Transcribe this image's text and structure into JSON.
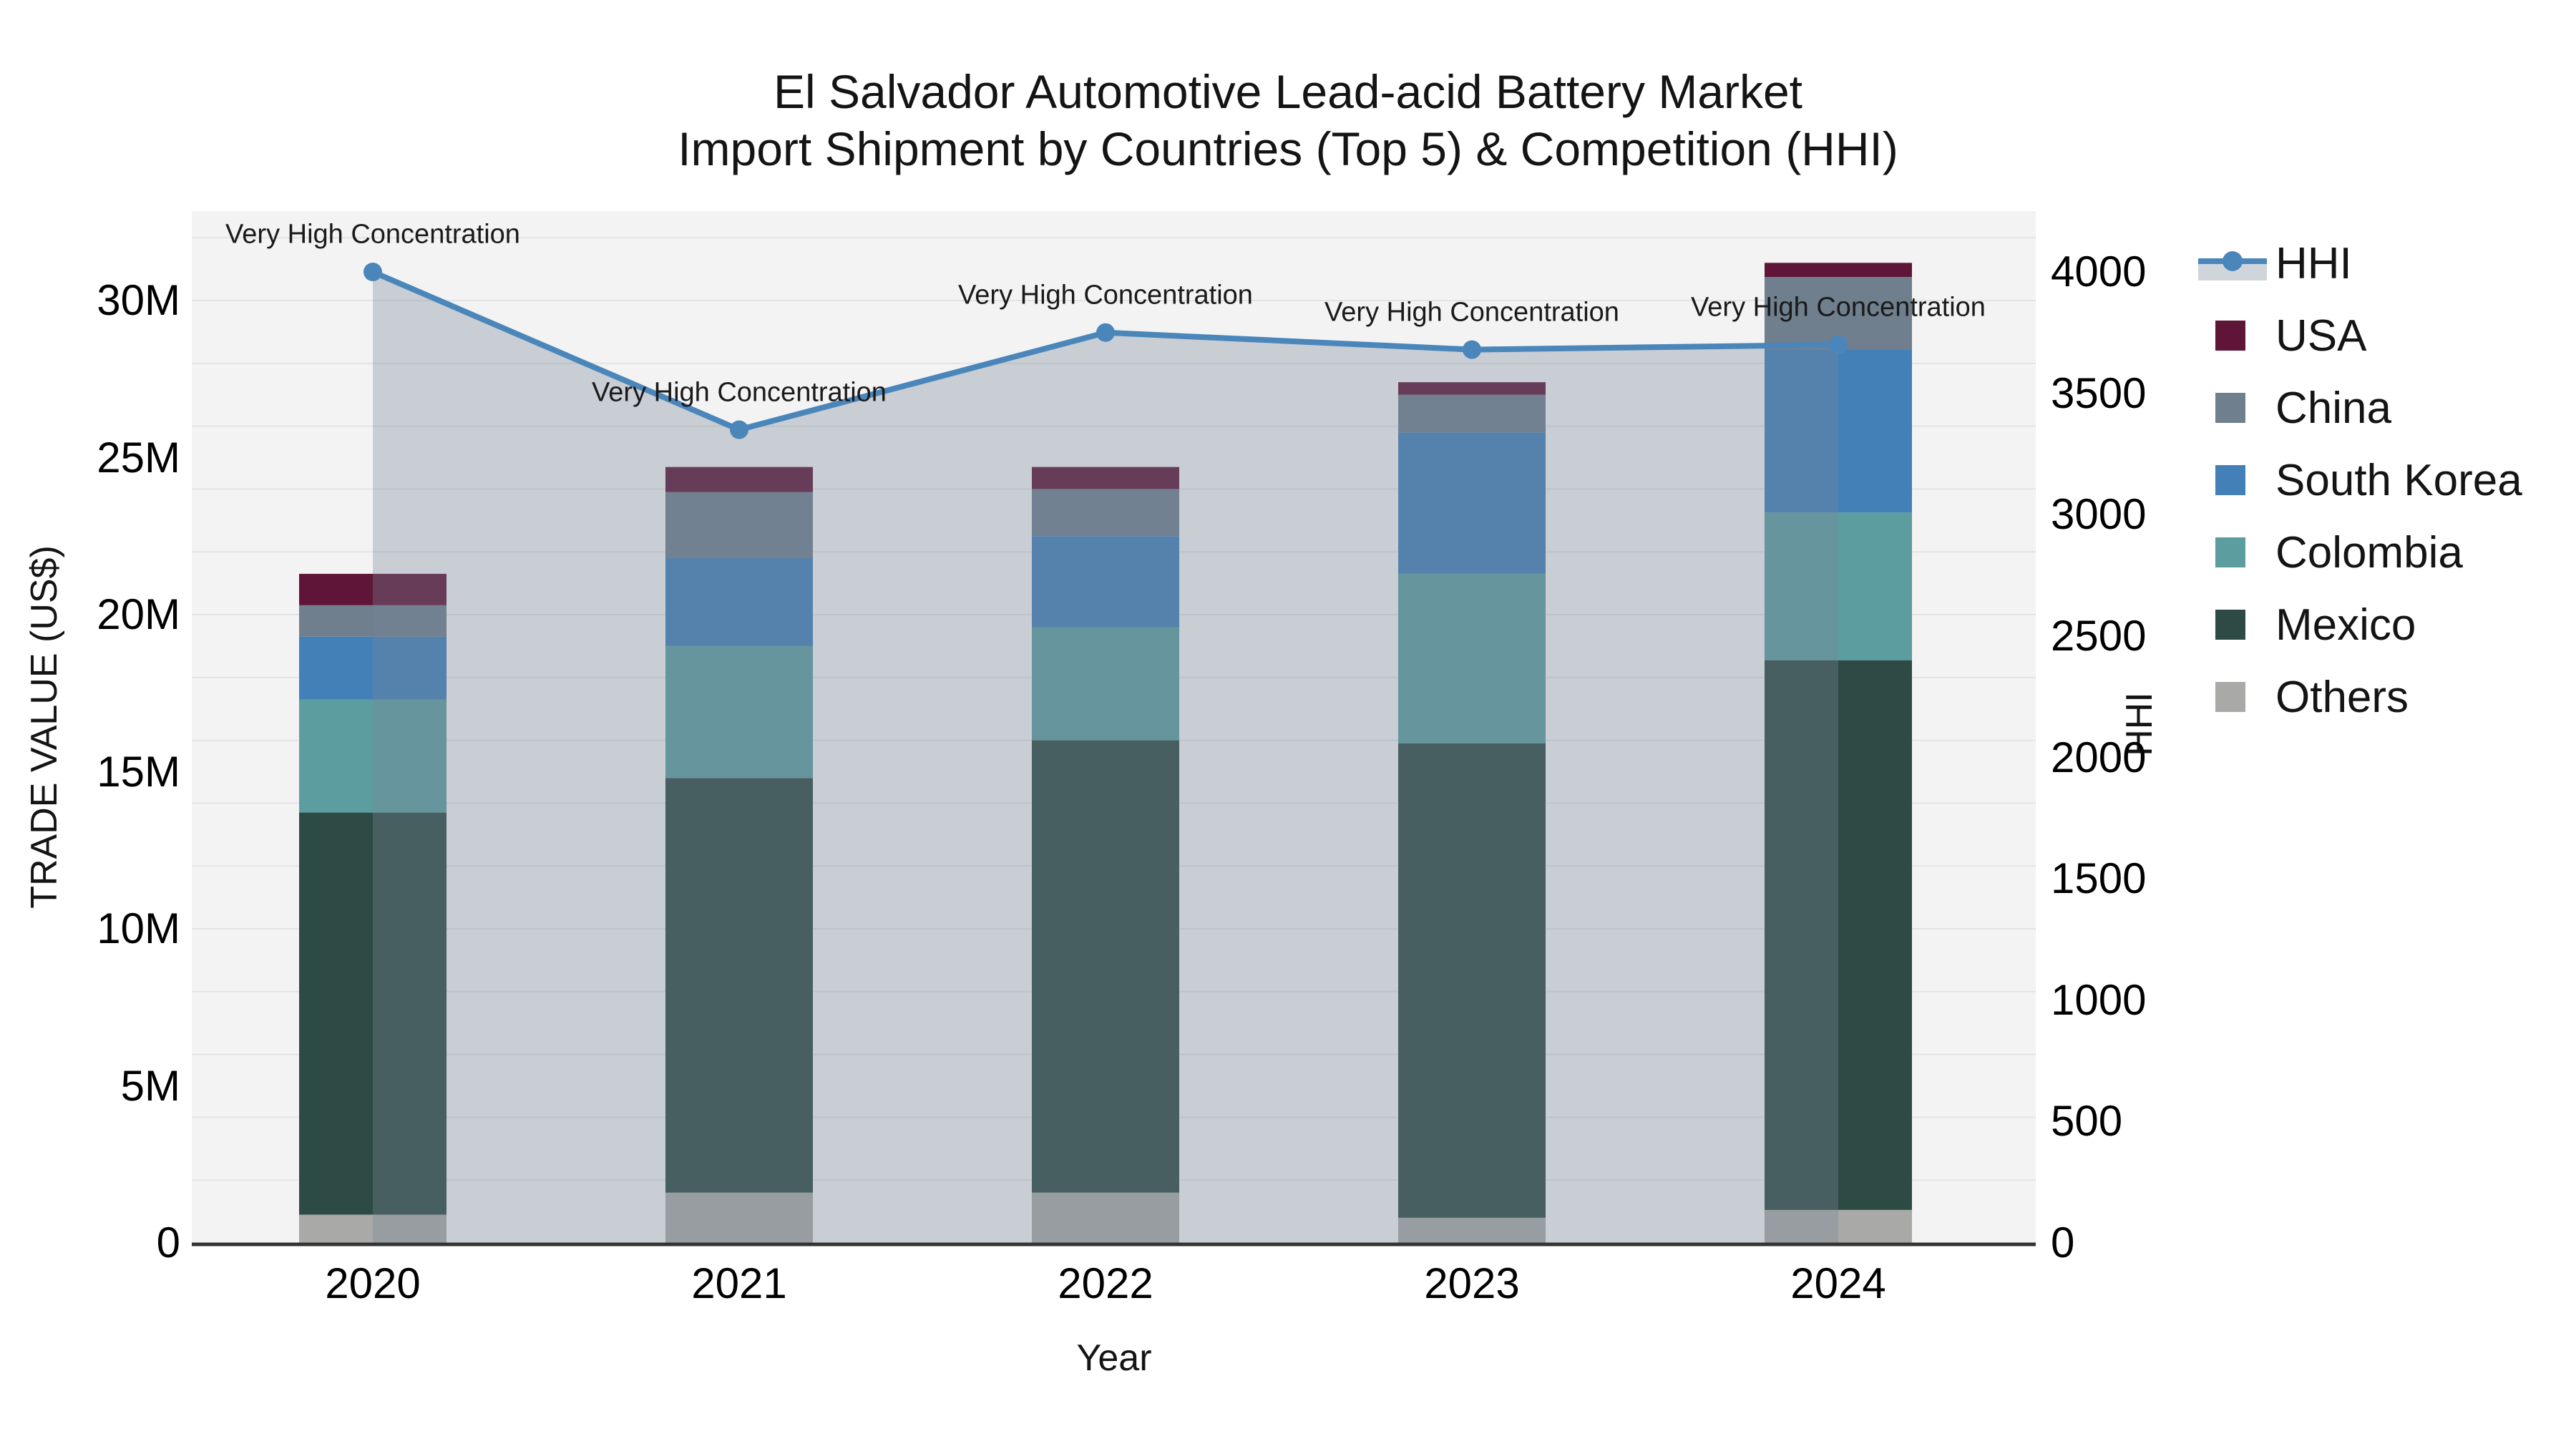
{
  "chart_data": {
    "type": "combo-stacked-bar-line",
    "title_line1": "El Salvador Automotive Lead-acid Battery Market",
    "title_line2": "Import Shipment by Countries (Top 5) & Competition (HHI)",
    "xlabel": "Year",
    "ylabel_left": "TRADE VALUE (US$)",
    "ylabel_right": "HHI",
    "categories": [
      "2020",
      "2021",
      "2022",
      "2023",
      "2024"
    ],
    "bar_unit": "millions of US$",
    "stack_order_bottom_to_top": [
      "Others",
      "Mexico",
      "Colombia",
      "South Korea",
      "China",
      "USA"
    ],
    "series": [
      {
        "name": "USA",
        "color": "#5f1537",
        "values": [
          1.0,
          0.8,
          0.7,
          0.4,
          0.45
        ]
      },
      {
        "name": "China",
        "color": "#6f7f8e",
        "values": [
          1.0,
          2.1,
          1.5,
          1.2,
          2.3
        ]
      },
      {
        "name": "South Korea",
        "color": "#4380b7",
        "values": [
          2.0,
          2.8,
          2.9,
          4.5,
          5.2
        ]
      },
      {
        "name": "Colombia",
        "color": "#5c9da0",
        "values": [
          3.6,
          4.2,
          3.6,
          5.4,
          4.7
        ]
      },
      {
        "name": "Mexico",
        "color": "#2e4a44",
        "values": [
          12.8,
          13.2,
          14.4,
          15.1,
          17.5
        ]
      },
      {
        "name": "Others",
        "color": "#a9a9a7",
        "values": [
          0.9,
          1.6,
          1.6,
          0.8,
          1.05
        ]
      }
    ],
    "line_series": {
      "name": "HHI",
      "axis": "right",
      "color": "#4a86ba",
      "values": [
        4000,
        3350,
        3750,
        3680,
        3700
      ]
    },
    "area_overlay": {
      "color": "#778899",
      "opacity": 0.35
    },
    "annotations": [
      {
        "category": "2020",
        "text": "Very High Concentration"
      },
      {
        "category": "2021",
        "text": "Very High Concentration"
      },
      {
        "category": "2022",
        "text": "Very High Concentration"
      },
      {
        "category": "2023",
        "text": "Very High Concentration"
      },
      {
        "category": "2024",
        "text": "Very High Concentration"
      }
    ],
    "left_axis": {
      "tick_labels": [
        "0",
        "5M",
        "10M",
        "15M",
        "20M",
        "25M",
        "30M"
      ],
      "tick_values_millions": [
        0,
        5,
        10,
        15,
        20,
        25,
        30
      ]
    },
    "right_axis": {
      "tick_labels": [
        "0",
        "500",
        "1000",
        "1500",
        "2000",
        "2500",
        "3000",
        "3500",
        "4000"
      ],
      "tick_values": [
        0,
        500,
        1000,
        1500,
        2000,
        2500,
        3000,
        3500,
        4000
      ],
      "max": 4000
    },
    "legend": {
      "position": "right",
      "items": [
        "HHI",
        "USA",
        "China",
        "South Korea",
        "Colombia",
        "Mexico",
        "Others"
      ]
    },
    "style": {
      "plot_bg": "#f4f3f4",
      "grid_color": "#e3e3e5",
      "axis_line_color": "#333333",
      "text_color": "#141414"
    }
  }
}
